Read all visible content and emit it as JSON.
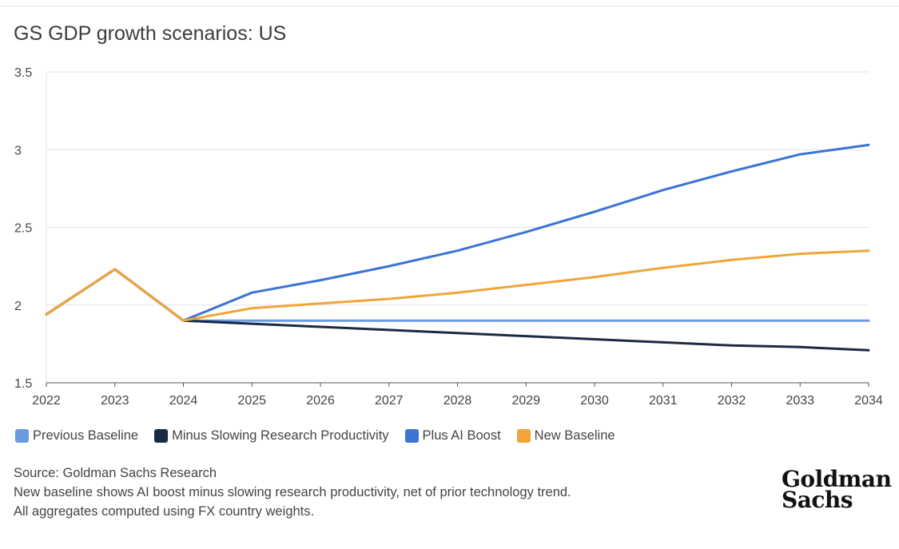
{
  "title": "GS GDP growth scenarios: US",
  "chart_data": {
    "type": "line",
    "title": "GS GDP growth scenarios: US",
    "xlabel": "",
    "ylabel": "",
    "x": [
      "2022",
      "2023",
      "2024",
      "2025",
      "2026",
      "2027",
      "2028",
      "2029",
      "2030",
      "2031",
      "2032",
      "2033",
      "2034"
    ],
    "y_ticks": [
      "3.5",
      "3",
      "2.5",
      "2",
      "1.5"
    ],
    "ylim": [
      1.5,
      3.5
    ],
    "grid": true,
    "legend_position": "bottom",
    "series": [
      {
        "name": "Previous Baseline",
        "color": "#6a9be2",
        "values": [
          1.94,
          2.23,
          1.9,
          1.9,
          1.9,
          1.9,
          1.9,
          1.9,
          1.9,
          1.9,
          1.9,
          1.9,
          1.9
        ]
      },
      {
        "name": "Minus Slowing Research Productivity",
        "color": "#1a2a44",
        "values": [
          1.94,
          2.23,
          1.9,
          1.88,
          1.86,
          1.84,
          1.82,
          1.8,
          1.78,
          1.76,
          1.74,
          1.73,
          1.71
        ]
      },
      {
        "name": "Plus AI Boost",
        "color": "#3b74d4",
        "values": [
          1.94,
          2.23,
          1.9,
          2.08,
          2.16,
          2.25,
          2.35,
          2.47,
          2.6,
          2.74,
          2.86,
          2.97,
          3.03
        ]
      },
      {
        "name": "New Baseline",
        "color": "#f0a53a",
        "values": [
          1.94,
          2.23,
          1.9,
          1.98,
          2.01,
          2.04,
          2.08,
          2.13,
          2.18,
          2.24,
          2.29,
          2.33,
          2.35
        ]
      }
    ]
  },
  "footer": {
    "source": "Source: Goldman Sachs Research",
    "note1": "New baseline shows AI boost minus slowing research productivity, net of prior technology trend.",
    "note2": "All aggregates computed using FX country weights."
  },
  "logo": {
    "line1": "Goldman",
    "line2": "Sachs"
  }
}
